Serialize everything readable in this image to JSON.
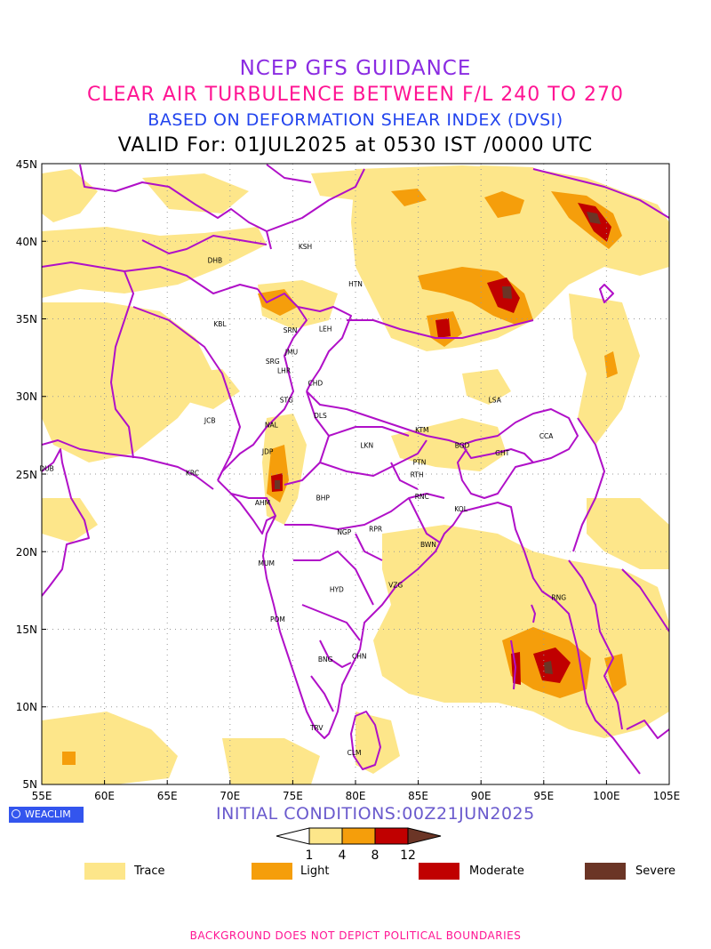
{
  "titles": {
    "line1": "NCEP GFS GUIDANCE",
    "line2": "CLEAR AIR TURBULENCE BETWEEN F/L 240 TO 270",
    "line3": "BASED ON DEFORMATION SHEAR INDEX (DVSI)",
    "line4": "VALID For: 01JUL2025 at 0530 IST /0000 UTC"
  },
  "colors": {
    "line1": "#8a2be2",
    "line2": "#ff1493",
    "line3": "#2244ee",
    "line4": "#000000",
    "boundary": "#b010c8",
    "trace": "#fde68a",
    "light": "#f59e0b",
    "moderate": "#c00000",
    "severe": "#6b3526",
    "init": "#6a5acd",
    "footer": "#ff1493"
  },
  "axes": {
    "lon_ticks": [
      "55E",
      "60E",
      "65E",
      "70E",
      "75E",
      "80E",
      "85E",
      "90E",
      "95E",
      "100E",
      "105E"
    ],
    "lat_ticks": [
      "45N",
      "40N",
      "35N",
      "30N",
      "25N",
      "20N",
      "15N",
      "10N",
      "5N"
    ]
  },
  "stations": [
    {
      "name": "KSH",
      "lon": 76.0,
      "lat": 39.5
    },
    {
      "name": "DHB",
      "lon": 68.8,
      "lat": 38.6
    },
    {
      "name": "HTN",
      "lon": 80.0,
      "lat": 37.1
    },
    {
      "name": "KBL",
      "lon": 69.2,
      "lat": 34.5
    },
    {
      "name": "SRN",
      "lon": 74.8,
      "lat": 34.1
    },
    {
      "name": "LEH",
      "lon": 77.6,
      "lat": 34.2
    },
    {
      "name": "JMU",
      "lon": 74.9,
      "lat": 32.7
    },
    {
      "name": "SRG",
      "lon": 73.4,
      "lat": 32.1
    },
    {
      "name": "LHR",
      "lon": 74.3,
      "lat": 31.5
    },
    {
      "name": "CHD",
      "lon": 76.8,
      "lat": 30.7
    },
    {
      "name": "STG",
      "lon": 74.5,
      "lat": 29.6
    },
    {
      "name": "LSA",
      "lon": 91.1,
      "lat": 29.6
    },
    {
      "name": "DLS",
      "lon": 77.2,
      "lat": 28.6
    },
    {
      "name": "JCB",
      "lon": 68.4,
      "lat": 28.3
    },
    {
      "name": "NAL",
      "lon": 73.3,
      "lat": 28.0
    },
    {
      "name": "KTM",
      "lon": 85.3,
      "lat": 27.7
    },
    {
      "name": "CCA",
      "lon": 95.2,
      "lat": 27.3
    },
    {
      "name": "BGD",
      "lon": 88.5,
      "lat": 26.7
    },
    {
      "name": "LKN",
      "lon": 80.9,
      "lat": 26.7
    },
    {
      "name": "GHT",
      "lon": 91.7,
      "lat": 26.2
    },
    {
      "name": "JDP",
      "lon": 73.0,
      "lat": 26.3
    },
    {
      "name": "DUB",
      "lon": 55.4,
      "lat": 25.2
    },
    {
      "name": "PTN",
      "lon": 85.1,
      "lat": 25.6
    },
    {
      "name": "KRC",
      "lon": 67.0,
      "lat": 24.9
    },
    {
      "name": "RTH",
      "lon": 84.9,
      "lat": 24.8
    },
    {
      "name": "RNC",
      "lon": 85.3,
      "lat": 23.4
    },
    {
      "name": "AHM",
      "lon": 72.6,
      "lat": 23.0
    },
    {
      "name": "BHP",
      "lon": 77.4,
      "lat": 23.3
    },
    {
      "name": "KOL",
      "lon": 88.4,
      "lat": 22.6
    },
    {
      "name": "NGP",
      "lon": 79.1,
      "lat": 21.1
    },
    {
      "name": "RPR",
      "lon": 81.6,
      "lat": 21.3
    },
    {
      "name": "BWN",
      "lon": 85.8,
      "lat": 20.3
    },
    {
      "name": "MUM",
      "lon": 72.9,
      "lat": 19.1
    },
    {
      "name": "HYD",
      "lon": 78.5,
      "lat": 17.4
    },
    {
      "name": "VZG",
      "lon": 83.2,
      "lat": 17.7
    },
    {
      "name": "RNG",
      "lon": 96.2,
      "lat": 16.9
    },
    {
      "name": "POM",
      "lon": 73.8,
      "lat": 15.5
    },
    {
      "name": "CHN",
      "lon": 80.3,
      "lat": 13.1
    },
    {
      "name": "BNG",
      "lon": 77.6,
      "lat": 12.9
    },
    {
      "name": "TRV",
      "lon": 76.9,
      "lat": 8.5
    },
    {
      "name": "CLM",
      "lon": 79.9,
      "lat": 6.9
    }
  ],
  "logo": "WEACLIM",
  "init_conditions": "INITIAL CONDITIONS:00Z21JUN2025",
  "colorbar": {
    "ticks": [
      "1",
      "4",
      "8",
      "12"
    ]
  },
  "legend": [
    {
      "label": "Trace",
      "color": "#fde68a"
    },
    {
      "label": "Light",
      "color": "#f59e0b"
    },
    {
      "label": "Moderate",
      "color": "#c00000"
    },
    {
      "label": "Severe",
      "color": "#6b3526"
    }
  ],
  "footer": "BACKGROUND DOES NOT DEPICT POLITICAL BOUNDARIES"
}
